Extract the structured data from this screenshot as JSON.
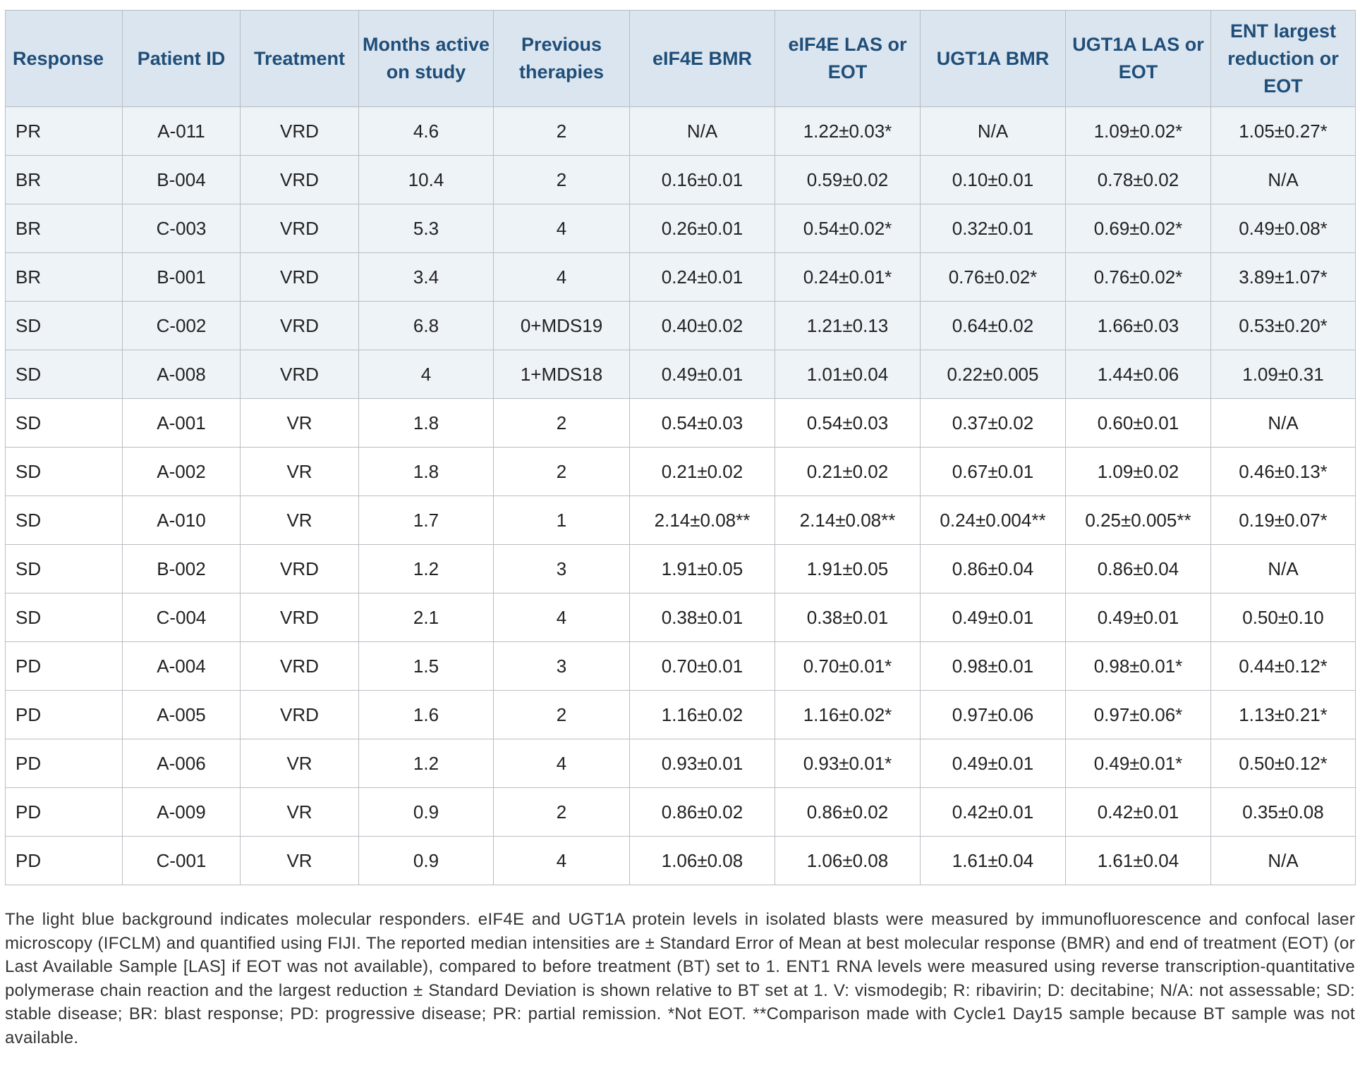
{
  "table": {
    "header": [
      "Response",
      "Patient ID",
      "Treatment",
      "Months active on study",
      "Previous therapies",
      "eIF4E BMR",
      "eIF4E LAS or EOT",
      "UGT1A BMR",
      "UGT1A LAS or EOT",
      "ENT largest reduction or EOT"
    ],
    "rows": [
      {
        "molecular_responder": true,
        "cells": [
          "PR",
          "A-011",
          "VRD",
          "4.6",
          "2",
          "N/A",
          "1.22±0.03*",
          "N/A",
          "1.09±0.02*",
          "1.05±0.27*"
        ]
      },
      {
        "molecular_responder": true,
        "cells": [
          "BR",
          "B-004",
          "VRD",
          "10.4",
          "2",
          "0.16±0.01",
          "0.59±0.02",
          "0.10±0.01",
          "0.78±0.02",
          "N/A"
        ]
      },
      {
        "molecular_responder": true,
        "cells": [
          "BR",
          "C-003",
          "VRD",
          "5.3",
          "4",
          "0.26±0.01",
          "0.54±0.02*",
          "0.32±0.01",
          "0.69±0.02*",
          "0.49±0.08*"
        ]
      },
      {
        "molecular_responder": true,
        "cells": [
          "BR",
          "B-001",
          "VRD",
          "3.4",
          "4",
          "0.24±0.01",
          "0.24±0.01*",
          "0.76±0.02*",
          "0.76±0.02*",
          "3.89±1.07*"
        ]
      },
      {
        "molecular_responder": true,
        "cells": [
          "SD",
          "C-002",
          "VRD",
          "6.8",
          "0+MDS19",
          "0.40±0.02",
          "1.21±0.13",
          "0.64±0.02",
          "1.66±0.03",
          "0.53±0.20*"
        ]
      },
      {
        "molecular_responder": true,
        "cells": [
          "SD",
          "A-008",
          "VRD",
          "4",
          "1+MDS18",
          "0.49±0.01",
          "1.01±0.04",
          "0.22±0.005",
          "1.44±0.06",
          "1.09±0.31"
        ]
      },
      {
        "molecular_responder": false,
        "cells": [
          "SD",
          "A-001",
          "VR",
          "1.8",
          "2",
          "0.54±0.03",
          "0.54±0.03",
          "0.37±0.02",
          "0.60±0.01",
          "N/A"
        ]
      },
      {
        "molecular_responder": false,
        "cells": [
          "SD",
          "A-002",
          "VR",
          "1.8",
          "2",
          "0.21±0.02",
          "0.21±0.02",
          "0.67±0.01",
          "1.09±0.02",
          "0.46±0.13*"
        ]
      },
      {
        "molecular_responder": false,
        "cells": [
          "SD",
          "A-010",
          "VR",
          "1.7",
          "1",
          "2.14±0.08**",
          "2.14±0.08**",
          "0.24±0.004**",
          "0.25±0.005**",
          "0.19±0.07*"
        ]
      },
      {
        "molecular_responder": false,
        "cells": [
          "SD",
          "B-002",
          "VRD",
          "1.2",
          "3",
          "1.91±0.05",
          "1.91±0.05",
          "0.86±0.04",
          "0.86±0.04",
          "N/A"
        ]
      },
      {
        "molecular_responder": false,
        "cells": [
          "SD",
          "C-004",
          "VRD",
          "2.1",
          "4",
          "0.38±0.01",
          "0.38±0.01",
          "0.49±0.01",
          "0.49±0.01",
          "0.50±0.10"
        ]
      },
      {
        "molecular_responder": false,
        "cells": [
          "PD",
          "A-004",
          "VRD",
          "1.5",
          "3",
          "0.70±0.01",
          "0.70±0.01*",
          "0.98±0.01",
          "0.98±0.01*",
          "0.44±0.12*"
        ]
      },
      {
        "molecular_responder": false,
        "cells": [
          "PD",
          "A-005",
          "VRD",
          "1.6",
          "2",
          "1.16±0.02",
          "1.16±0.02*",
          "0.97±0.06",
          "0.97±0.06*",
          "1.13±0.21*"
        ]
      },
      {
        "molecular_responder": false,
        "cells": [
          "PD",
          "A-006",
          "VR",
          "1.2",
          "4",
          "0.93±0.01",
          "0.93±0.01*",
          "0.49±0.01",
          "0.49±0.01*",
          "0.50±0.12*"
        ]
      },
      {
        "molecular_responder": false,
        "cells": [
          "PD",
          "A-009",
          "VR",
          "0.9",
          "2",
          "0.86±0.02",
          "0.86±0.02",
          "0.42±0.01",
          "0.42±0.01",
          "0.35±0.08"
        ]
      },
      {
        "molecular_responder": false,
        "cells": [
          "PD",
          "C-001",
          "VR",
          "0.9",
          "4",
          "1.06±0.08",
          "1.06±0.08",
          "1.61±0.04",
          "1.61±0.04",
          "N/A"
        ]
      }
    ]
  },
  "footnote": "The light blue background indicates molecular responders. eIF4E and UGT1A protein levels in isolated blasts were measured by immunofluorescence and confocal laser microscopy (IFCLM) and quantified using FIJI. The reported median intensities are ± Standard Error of Mean at best molecular response (BMR) and end of treatment (EOT) (or Last Available Sample [LAS] if EOT was not available), compared to before treatment (BT) set to 1. ENT1 RNA levels were measured using reverse transcription-quantitative polymerase chain reaction and the largest reduction ± Standard Deviation is shown relative to BT set at 1. V: vismodegib; R: ribavirin; D: decitabine; N/A: not assessable; SD: stable disease; BR: blast response; PD: progressive disease; PR: partial remission. *Not EOT. **Comparison made with Cycle1 Day15 sample because BT sample was not available."
}
